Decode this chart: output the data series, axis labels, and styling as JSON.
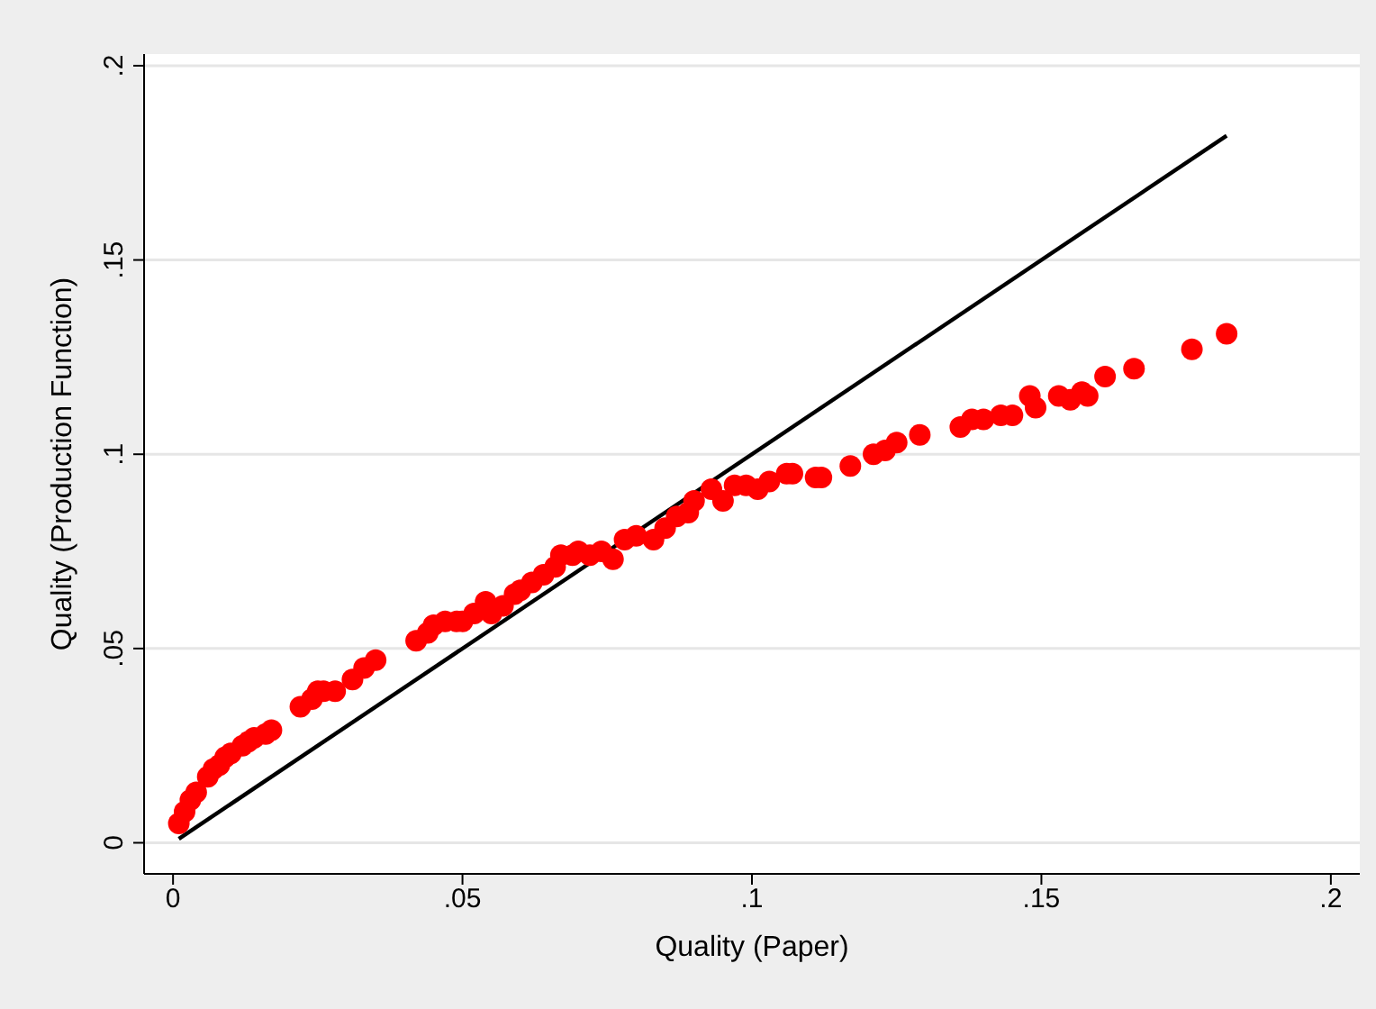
{
  "chart_data": {
    "type": "scatter",
    "xlabel": "Quality (Paper)",
    "ylabel": "Quality (Production Function)",
    "xlim": [
      -0.005,
      0.205
    ],
    "ylim": [
      -0.008,
      0.203
    ],
    "xticks": [
      0,
      {
        "value": 0.05,
        "label": ".05"
      },
      {
        "value": 0.1,
        "label": ".1"
      },
      {
        "value": 0.15,
        "label": ".15"
      },
      {
        "value": 0.2,
        "label": ".2"
      }
    ],
    "yticks": [
      0,
      {
        "value": 0.05,
        "label": ".05"
      },
      {
        "value": 0.1,
        "label": ".1"
      },
      {
        "value": 0.15,
        "label": ".15"
      },
      {
        "value": 0.2,
        "label": ".2"
      }
    ],
    "grid": "y",
    "series": [
      {
        "color": "#ff0000",
        "marker": "circle",
        "x": [
          0.001,
          0.002,
          0.003,
          0.004,
          0.006,
          0.007,
          0.008,
          0.009,
          0.01,
          0.012,
          0.013,
          0.014,
          0.016,
          0.017,
          0.022,
          0.024,
          0.025,
          0.026,
          0.028,
          0.031,
          0.033,
          0.035,
          0.042,
          0.044,
          0.045,
          0.047,
          0.049,
          0.05,
          0.052,
          0.054,
          0.055,
          0.057,
          0.059,
          0.06,
          0.062,
          0.064,
          0.066,
          0.067,
          0.069,
          0.07,
          0.072,
          0.074,
          0.076,
          0.078,
          0.08,
          0.083,
          0.085,
          0.087,
          0.089,
          0.09,
          0.093,
          0.095,
          0.097,
          0.099,
          0.101,
          0.103,
          0.106,
          0.107,
          0.111,
          0.112,
          0.117,
          0.121,
          0.123,
          0.125,
          0.129,
          0.136,
          0.138,
          0.14,
          0.143,
          0.145,
          0.148,
          0.149,
          0.153,
          0.155,
          0.157,
          0.158,
          0.161,
          0.166,
          0.176,
          0.182
        ],
        "values": [
          0.005,
          0.008,
          0.011,
          0.013,
          0.017,
          0.019,
          0.02,
          0.022,
          0.023,
          0.025,
          0.026,
          0.027,
          0.028,
          0.029,
          0.035,
          0.037,
          0.039,
          0.039,
          0.039,
          0.042,
          0.045,
          0.047,
          0.052,
          0.054,
          0.056,
          0.057,
          0.057,
          0.057,
          0.059,
          0.062,
          0.059,
          0.061,
          0.064,
          0.065,
          0.067,
          0.069,
          0.071,
          0.074,
          0.074,
          0.075,
          0.074,
          0.075,
          0.073,
          0.078,
          0.079,
          0.078,
          0.081,
          0.084,
          0.085,
          0.088,
          0.091,
          0.088,
          0.092,
          0.092,
          0.091,
          0.093,
          0.095,
          0.095,
          0.094,
          0.094,
          0.097,
          0.1,
          0.101,
          0.103,
          0.105,
          0.107,
          0.109,
          0.109,
          0.11,
          0.11,
          0.115,
          0.112,
          0.115,
          0.114,
          0.116,
          0.115,
          0.12,
          0.122,
          0.127,
          0.131
        ]
      },
      {
        "type": "line",
        "color": "#000000",
        "x": [
          0.001,
          0.182
        ],
        "values": [
          0.001,
          0.182
        ]
      }
    ]
  }
}
